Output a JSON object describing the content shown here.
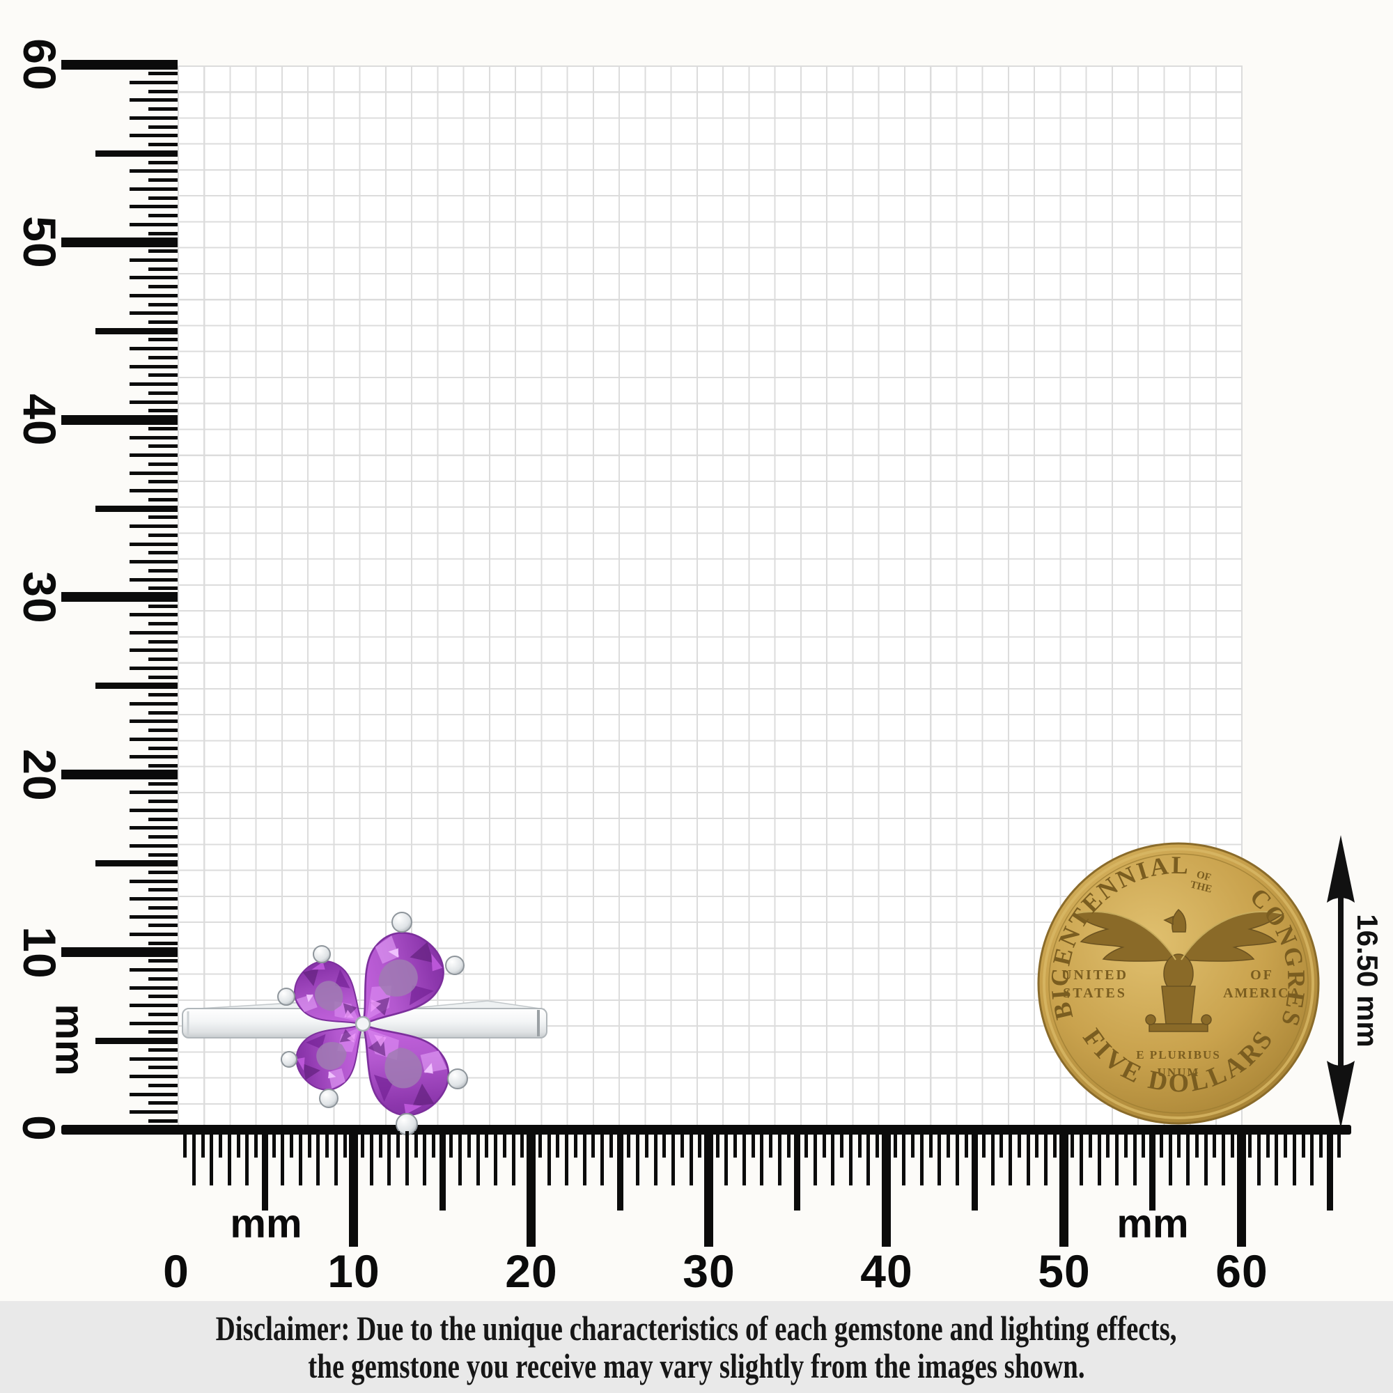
{
  "rulers": {
    "left": {
      "unit": "mm",
      "labels": [
        "60",
        "50",
        "40",
        "30",
        "20",
        "10",
        "0"
      ]
    },
    "bottom": {
      "unit_left": "mm",
      "unit_right": "mm",
      "labels": [
        "0",
        "10",
        "20",
        "30",
        "40",
        "50",
        "60"
      ]
    }
  },
  "ring": {
    "description": "silver flower ring with four pear-cut purple gemstones",
    "gem_color": "#b358cf",
    "metal_color": "#eef0f2"
  },
  "coin": {
    "arc_top_left": "BICENTENNIAL",
    "arc_top_small_1": "OF",
    "arc_top_small_2": "THE",
    "arc_top_right": "CONGRESS",
    "left_line1": "UNITED",
    "left_line2": "STATES",
    "right_line1": "OF",
    "right_line2": "AMERICA",
    "motto_line1": "E PLURIBUS",
    "motto_line2": "UNUM",
    "arc_bottom": "FIVE DOLLARS",
    "diameter_label": "16.50 mm",
    "gold_color": "#c9a24d"
  },
  "disclaimer": {
    "line1": "Disclaimer: Due to the unique characteristics of each gemstone and lighting effects,",
    "line2": "the gemstone you receive may vary slightly from the images shown."
  }
}
